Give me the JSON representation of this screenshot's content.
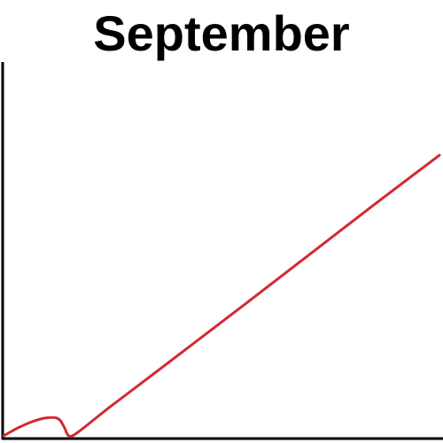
{
  "chart_data": {
    "type": "line",
    "title": "September",
    "xlabel": "",
    "ylabel": "",
    "grid": false,
    "legend": "none",
    "series": [
      {
        "color": "#d02a30",
        "points": [
          [
            0,
            0.5
          ],
          [
            2,
            1.8
          ],
          [
            4,
            3.0
          ],
          [
            6,
            4.0
          ],
          [
            8,
            4.8
          ],
          [
            10,
            5.3
          ],
          [
            12,
            5.3
          ],
          [
            13,
            4.6
          ],
          [
            14,
            2.6
          ],
          [
            15,
            0.5
          ],
          [
            17,
            1.4
          ],
          [
            25,
            8.7
          ],
          [
            40,
            21.9
          ],
          [
            55,
            35.2
          ],
          [
            70,
            48.6
          ],
          [
            85,
            62.0
          ],
          [
            100,
            75.2
          ]
        ]
      }
    ],
    "xlim": [
      0,
      100
    ],
    "ylim": [
      0,
      100
    ]
  }
}
